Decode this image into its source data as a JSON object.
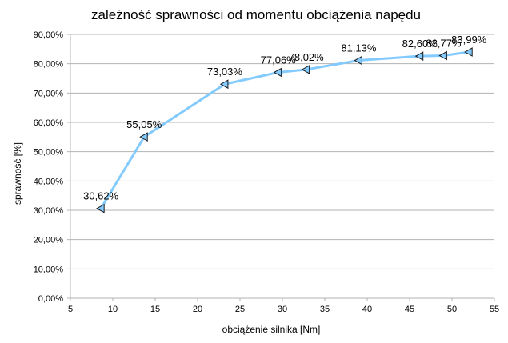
{
  "chart_data": {
    "type": "line",
    "title": "zależność sprawności od momentu obciążenia napędu",
    "xlabel": "obciążenie silnika [Nm]",
    "ylabel": "sprawność [%]",
    "xlim": [
      5,
      55
    ],
    "ylim": [
      0,
      90
    ],
    "x_ticks": [
      "5",
      "10",
      "15",
      "20",
      "25",
      "30",
      "35",
      "40",
      "45",
      "50",
      "55"
    ],
    "y_ticks": [
      "0,00%",
      "10,00%",
      "20,00%",
      "30,00%",
      "40,00%",
      "50,00%",
      "60,00%",
      "70,00%",
      "80,00%",
      "90,00%"
    ],
    "grid": "horizontal",
    "legend": "none",
    "series": [
      {
        "color": "#83caff",
        "marker": "triangle-left",
        "points": [
          {
            "x": 8.6,
            "y": 30.62,
            "label": "30,62%"
          },
          {
            "x": 13.7,
            "y": 55.05,
            "label": "55,05%"
          },
          {
            "x": 23.2,
            "y": 73.03,
            "label": "73,03%"
          },
          {
            "x": 29.5,
            "y": 77.06,
            "label": "77,06%"
          },
          {
            "x": 32.8,
            "y": 78.02,
            "label": "78,02%"
          },
          {
            "x": 39.0,
            "y": 81.13,
            "label": "81,13%"
          },
          {
            "x": 46.2,
            "y": 82.6,
            "label": "82,60%"
          },
          {
            "x": 49.0,
            "y": 82.77,
            "label": "82,77%"
          },
          {
            "x": 52.0,
            "y": 83.99,
            "label": "83,99%"
          }
        ]
      }
    ]
  }
}
